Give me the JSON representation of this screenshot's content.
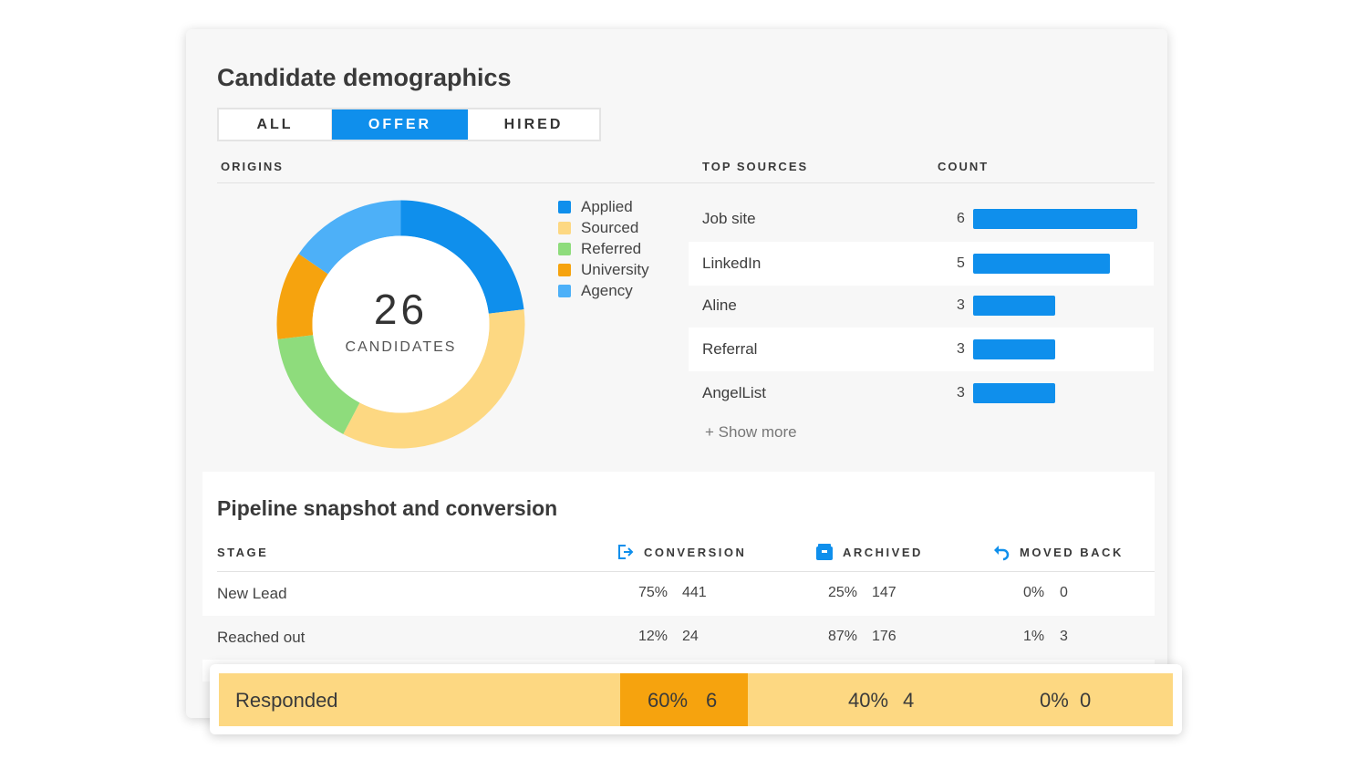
{
  "title": "Candidate demographics",
  "tabs": [
    {
      "label": "ALL",
      "active": false
    },
    {
      "label": "OFFER",
      "active": true
    },
    {
      "label": "HIRED",
      "active": false
    }
  ],
  "origins": {
    "heading": "ORIGINS",
    "total": "26",
    "total_label": "CANDIDATES",
    "segments": [
      {
        "name": "Applied",
        "value": 6,
        "color": "#0f8fec"
      },
      {
        "name": "Sourced",
        "value": 9,
        "color": "#fdd882"
      },
      {
        "name": "Referred",
        "value": 4,
        "color": "#8edc7c"
      },
      {
        "name": "University",
        "value": 3,
        "color": "#f6a30e"
      },
      {
        "name": "Agency",
        "value": 4,
        "color": "#4db0f8"
      }
    ]
  },
  "sources": {
    "heading": "TOP SOURCES",
    "count_heading": "COUNT",
    "max": 6,
    "rows": [
      {
        "name": "Job site",
        "count": "6"
      },
      {
        "name": "LinkedIn",
        "count": "5"
      },
      {
        "name": "Aline",
        "count": "3"
      },
      {
        "name": "Referral",
        "count": "3"
      },
      {
        "name": "AngelList",
        "count": "3"
      }
    ],
    "show_more": "+ Show more"
  },
  "pipeline": {
    "title": "Pipeline snapshot and conversion",
    "headers": {
      "stage": "STAGE",
      "conversion": "CONVERSION",
      "archived": "ARCHIVED",
      "moved_back": "MOVED BACK"
    },
    "rows": [
      {
        "stage": "New Lead",
        "conv_pct": "75%",
        "conv_n": "441",
        "arch_pct": "25%",
        "arch_n": "147",
        "back_pct": "0%",
        "back_n": "0"
      },
      {
        "stage": "Reached out",
        "conv_pct": "12%",
        "conv_n": "24",
        "arch_pct": "87%",
        "arch_n": "176",
        "back_pct": "1%",
        "back_n": "3"
      }
    ],
    "highlight": {
      "stage": "Responded",
      "conv_pct": "60%",
      "conv_n": "6",
      "arch_pct": "40%",
      "arch_n": "4",
      "back_pct": "0%",
      "back_n": "0"
    }
  },
  "colors": {
    "accent": "#0f8fec",
    "highlight": "#fdd882",
    "highlight_strong": "#f6a30e"
  }
}
